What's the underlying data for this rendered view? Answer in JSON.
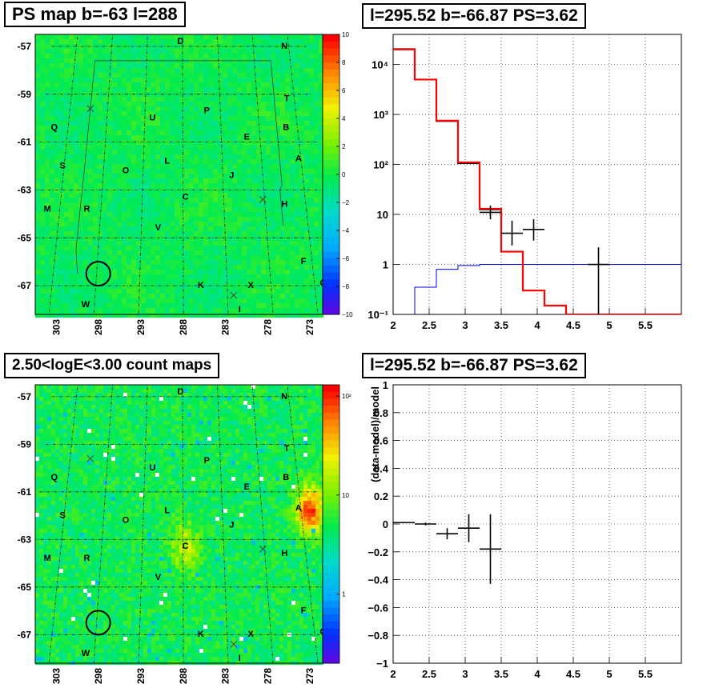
{
  "titles": {
    "ps_map": "PS map b=-63 l=288",
    "spectrum": "l=295.52 b=-66.87 PS=3.62",
    "count_map": "2.50<logE<3.00 count maps",
    "residual": "l=295.52 b=-66.87 PS=3.62"
  },
  "maps": {
    "lat_ticks": [
      "-57",
      "-59",
      "-61",
      "-63",
      "-65",
      "-67"
    ],
    "lon_ticks": [
      "303",
      "298",
      "293",
      "288",
      "283",
      "278",
      "273"
    ],
    "sources": [
      {
        "label": "D",
        "l": 288.3,
        "b": -56.8
      },
      {
        "label": "N",
        "l": 273.6,
        "b": -57.0
      },
      {
        "label": "T",
        "l": 274.0,
        "b": -59.2
      },
      {
        "label": "P",
        "l": 284.8,
        "b": -59.7
      },
      {
        "label": "U",
        "l": 292.0,
        "b": -60.0
      },
      {
        "label": "B",
        "l": 274.5,
        "b": -60.4
      },
      {
        "label": "Q",
        "l": 304.8,
        "b": -60.4
      },
      {
        "label": "E",
        "l": 279.7,
        "b": -60.8
      },
      {
        "label": "A",
        "l": 273.3,
        "b": -61.7
      },
      {
        "label": "L",
        "l": 290.0,
        "b": -61.8
      },
      {
        "label": "S",
        "l": 303.2,
        "b": -62.0
      },
      {
        "label": "O",
        "l": 295.2,
        "b": -62.2
      },
      {
        "label": "J",
        "l": 281.9,
        "b": -62.4
      },
      {
        "label": "C",
        "l": 287.7,
        "b": -63.3
      },
      {
        "label": "H",
        "l": 275.6,
        "b": -63.6
      },
      {
        "label": "M",
        "l": 304.5,
        "b": -63.8
      },
      {
        "label": "R",
        "l": 299.7,
        "b": -63.8
      },
      {
        "label": "V",
        "l": 291.0,
        "b": -64.6
      },
      {
        "label": "F",
        "l": 274.0,
        "b": -66.0
      },
      {
        "label": "G",
        "l": 272.0,
        "b": -66.9
      },
      {
        "label": "X",
        "l": 280.3,
        "b": -67.0
      },
      {
        "label": "K",
        "l": 286.0,
        "b": -67.0
      },
      {
        "label": "W",
        "l": 299.0,
        "b": -67.8
      },
      {
        "label": "I",
        "l": 281.7,
        "b": -68.0
      }
    ],
    "crosses": [
      {
        "l": 300.3,
        "b": -59.6
      },
      {
        "l": 278.2,
        "b": -63.4
      },
      {
        "l": 282.3,
        "b": -67.4
      }
    ],
    "roi_circle": {
      "l": 297.8,
      "b": -66.5
    }
  },
  "ps_colorbar": {
    "ticks": [
      "10",
      "8",
      "6",
      "4",
      "2",
      "0",
      "−2",
      "−4",
      "−6",
      "−8",
      "−10"
    ],
    "range": [
      -10,
      10
    ]
  },
  "count_colorbar": {
    "ticks": [
      {
        "label": "10²",
        "value": 100
      },
      {
        "label": "10",
        "value": 10
      },
      {
        "label": "1",
        "value": 1
      }
    ],
    "range": [
      0.2,
      130
    ]
  },
  "spectrum_axes": {
    "x_ticks": [
      "2",
      "2.5",
      "3",
      "3.5",
      "4",
      "4.5",
      "5",
      "5.5"
    ],
    "y_ticks": [
      {
        "label": "10⁻¹",
        "value": 0.1
      },
      {
        "label": "1",
        "value": 1
      },
      {
        "label": "10",
        "value": 10
      },
      {
        "label": "10²",
        "value": 100
      },
      {
        "label": "10³",
        "value": 1000
      },
      {
        "label": "10⁴",
        "value": 10000
      }
    ]
  },
  "residual_axes": {
    "ylabel": "(data-model)/model",
    "x_ticks": [
      "2",
      "2.5",
      "3",
      "3.5",
      "4",
      "4.5",
      "5",
      "5.5"
    ],
    "y_ticks": [
      "1",
      "0.8",
      "0.6",
      "0.4",
      "0.2",
      "0",
      "−0.2",
      "−0.4",
      "−0.6",
      "−0.8",
      "−1"
    ]
  },
  "chart_data": [
    {
      "type": "heatmap",
      "title": "PS map b=-63 l=288",
      "xlabel": "",
      "ylabel": "",
      "xlim": [
        305.5,
        271.5
      ],
      "ylim": [
        -68.2,
        -56.5
      ],
      "zlim": [
        -10,
        10
      ],
      "background_level": 0.5
    },
    {
      "type": "line",
      "title": "l=295.52 b=-66.87 PS=3.62",
      "log_y": true,
      "xlim": [
        2,
        6
      ],
      "ylim": [
        0.1,
        40000
      ],
      "grid": true,
      "series": [
        {
          "color": "#ff0000",
          "bins": [
            [
              2.0,
              2.3,
              20000
            ],
            [
              2.3,
              2.6,
              5000
            ],
            [
              2.6,
              2.9,
              750
            ],
            [
              2.9,
              3.2,
              110
            ],
            [
              3.2,
              3.5,
              13
            ],
            [
              3.5,
              3.8,
              1.8
            ],
            [
              3.8,
              4.1,
              0.3
            ],
            [
              4.1,
              4.4,
              0.15
            ],
            [
              4.4,
              6.0,
              0.1
            ]
          ]
        },
        {
          "color": "#000000",
          "bins": [
            [
              2.0,
              2.3,
              20500
            ],
            [
              2.3,
              2.6,
              5000
            ],
            [
              2.6,
              2.9,
              730
            ],
            [
              2.9,
              3.2,
              105
            ],
            [
              3.2,
              3.5,
              12.5
            ],
            [
              3.5,
              3.8,
              1.8
            ]
          ]
        },
        {
          "color": "#0000ff",
          "bins": [
            [
              2.3,
              2.6,
              0.35
            ],
            [
              2.6,
              2.9,
              0.8
            ],
            [
              2.9,
              3.2,
              0.95
            ],
            [
              3.2,
              6.0,
              1.0
            ]
          ]
        }
      ],
      "points": [
        {
          "x": 3.35,
          "y": 11,
          "xerr": 0.15,
          "ylo": 8,
          "yhi": 15
        },
        {
          "x": 3.65,
          "y": 4.2,
          "xerr": 0.15,
          "ylo": 2.4,
          "yhi": 7.5
        },
        {
          "x": 3.95,
          "y": 5.0,
          "xerr": 0.15,
          "ylo": 3.0,
          "yhi": 8.0
        },
        {
          "x": 4.85,
          "y": 1.0,
          "xerr": 0.15,
          "ylo": 0.1,
          "yhi": 2.2
        }
      ]
    },
    {
      "type": "heatmap",
      "title": "2.50<logE<3.00 count maps",
      "xlabel": "",
      "ylabel": "",
      "xlim": [
        305.5,
        271.5
      ],
      "ylim": [
        -68.2,
        -56.5
      ],
      "zlim": [
        0.2,
        130
      ],
      "log_z": true,
      "hotspots": [
        {
          "l": 273.2,
          "b": -61.7,
          "peak": 100
        },
        {
          "l": 288.0,
          "b": -63.2,
          "peak": 10
        }
      ]
    },
    {
      "type": "scatter",
      "title": "l=295.52 b=-66.87 PS=3.62",
      "xlim": [
        2,
        6
      ],
      "ylim": [
        -1,
        1
      ],
      "ylabel": "(data-model)/model",
      "grid": true,
      "points": [
        {
          "x": 2.15,
          "y": 0.01,
          "xerr": 0.15,
          "yerr": 0.005
        },
        {
          "x": 2.45,
          "y": 0.0,
          "xerr": 0.15,
          "yerr": 0.01
        },
        {
          "x": 2.75,
          "y": -0.07,
          "xerr": 0.15,
          "yerr": 0.04
        },
        {
          "x": 3.05,
          "y": -0.03,
          "xerr": 0.15,
          "yerr": 0.1
        },
        {
          "x": 3.35,
          "y": -0.18,
          "xerr": 0.15,
          "yerr": 0.25
        }
      ]
    }
  ]
}
